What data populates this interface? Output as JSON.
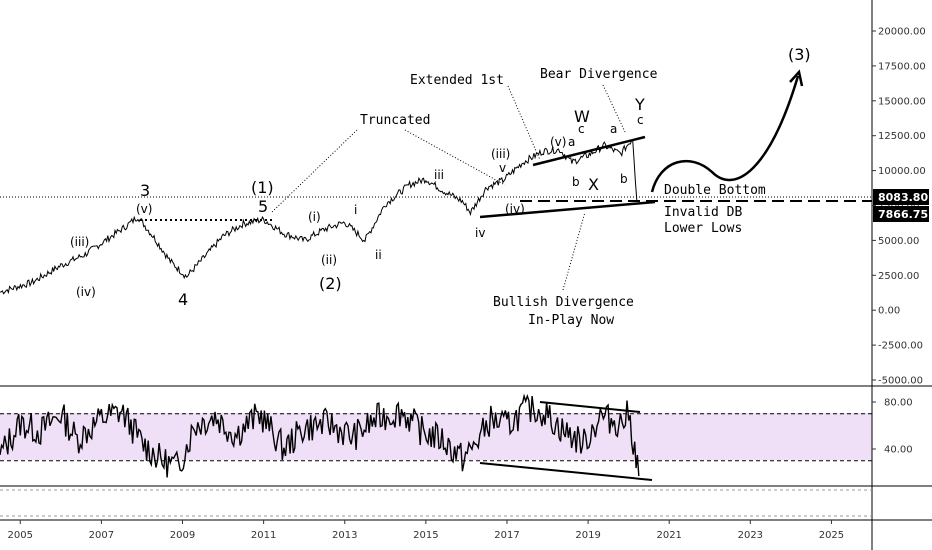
{
  "chart_data": [
    {
      "type": "line",
      "panel": "price",
      "x_range": [
        2004.5,
        2026.0
      ],
      "ylim": [
        -5000,
        22000
      ],
      "y_ticks": [
        "20000.00",
        "17500.00",
        "15000.00",
        "12500.00",
        "10000.00",
        "7500.00",
        "5000.00",
        "2500.00",
        "0.00",
        "-2500.00",
        "-5000.00"
      ],
      "y_tick_values": [
        20000,
        17500,
        15000,
        12500,
        10000,
        7500,
        5000,
        2500,
        0,
        -2500,
        -5000
      ],
      "price_tags": [
        {
          "label": "8083.80",
          "value": 8083.8
        },
        {
          "label": "7866.75",
          "value": 7866.75
        }
      ],
      "series": [
        {
          "x": [
            2004.5,
            2005.3,
            2006.0,
            2006.6,
            2007.1,
            2007.6,
            2007.9,
            2008.3,
            2008.7,
            2009.1,
            2009.6,
            2010.0,
            2010.5,
            2011.0,
            2011.5,
            2012.0,
            2012.5,
            2013.0,
            2013.5,
            2014.0,
            2014.6,
            2015.0,
            2015.4,
            2015.9,
            2016.1,
            2016.5,
            2016.9,
            2017.4,
            2017.9,
            2018.3,
            2018.6,
            2019.0,
            2019.4,
            2019.8,
            2020.1,
            2020.2
          ],
          "values": [
            1300,
            2000,
            3200,
            4000,
            5000,
            6000,
            6700,
            5200,
            3500,
            2400,
            4000,
            5300,
            6200,
            6500,
            5500,
            5000,
            5800,
            6300,
            5000,
            7600,
            9000,
            9400,
            8600,
            7800,
            7000,
            8800,
            9300,
            10600,
            11400,
            11500,
            10600,
            11100,
            11800,
            11200,
            12300,
            7900
          ]
        }
      ],
      "wave_labels": [
        "3",
        "(v)",
        "(iii)",
        "(iv)",
        "4",
        "(1)",
        "5",
        "(2)",
        "(i)",
        "(ii)",
        "i",
        "ii",
        "iii",
        "iv",
        "(iii)",
        "v",
        "(iv)",
        "(v)",
        "a",
        "c",
        "W",
        "b",
        "X",
        "a",
        "b",
        "Y",
        "c",
        "(3)"
      ],
      "annotations": [
        "Truncated",
        "Extended 1st",
        "Bear Divergence",
        "Double Bottom",
        "Invalid DB",
        "Lower Lows",
        "Bullish Divergence",
        "In-Play Now"
      ]
    },
    {
      "type": "line",
      "panel": "rsi",
      "x_range": [
        2004.5,
        2026.0
      ],
      "ylim": [
        5,
        90
      ],
      "y_ticks": [
        "80.00",
        "40.00"
      ],
      "y_tick_values": [
        80,
        40
      ],
      "levels": [
        70,
        30
      ],
      "series": [
        {
          "x": [
            2004.5,
            2005.0,
            2005.5,
            2006.0,
            2006.4,
            2007.0,
            2007.5,
            2008.0,
            2008.5,
            2008.9,
            2009.3,
            2009.8,
            2010.3,
            2010.9,
            2011.5,
            2012.0,
            2012.6,
            2013.2,
            2013.8,
            2014.4,
            2014.9,
            2015.4,
            2015.9,
            2016.1,
            2016.6,
            2017.0,
            2017.5,
            2017.9,
            2018.4,
            2018.9,
            2019.3,
            2019.8,
            2020.0,
            2020.15,
            2020.25
          ],
          "values": [
            35,
            62,
            55,
            70,
            48,
            66,
            72,
            45,
            30,
            25,
            60,
            68,
            52,
            70,
            40,
            58,
            62,
            50,
            66,
            72,
            55,
            48,
            32,
            38,
            65,
            60,
            75,
            72,
            55,
            45,
            68,
            62,
            70,
            40,
            17
          ]
        }
      ]
    }
  ],
  "x_axis": {
    "ticks": [
      "2005",
      "2007",
      "2009",
      "2011",
      "2013",
      "2015",
      "2017",
      "2019",
      "2021",
      "2023",
      "2025"
    ],
    "tick_values": [
      2005,
      2007,
      2009,
      2011,
      2013,
      2015,
      2017,
      2019,
      2021,
      2023,
      2025
    ]
  },
  "colors": {
    "price_line": "#000000",
    "rsi_line": "#000000",
    "rsi_band": "#efe0f7",
    "tag_bg": "#000000",
    "axis": "#333333"
  }
}
